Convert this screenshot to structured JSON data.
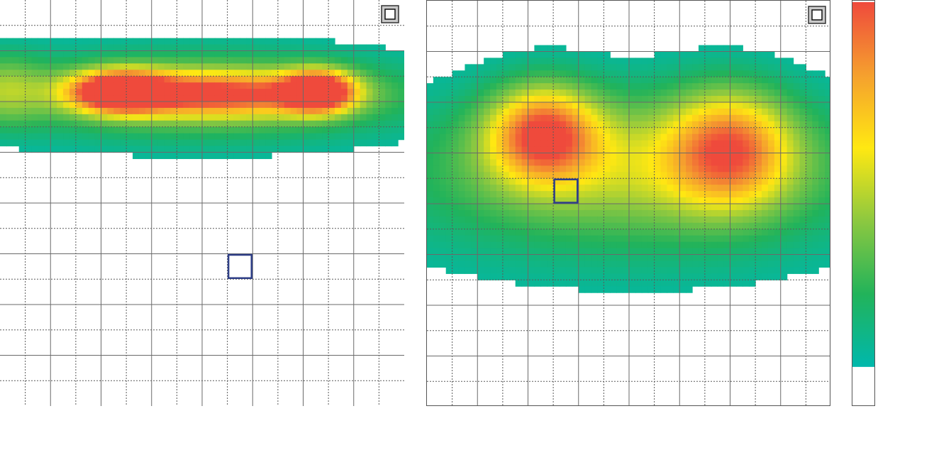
{
  "colors": {
    "background": "#ffffff",
    "grid_major": "#6a6a6a",
    "grid_minor": "#5a5a5a",
    "marker": "#2f3f87",
    "frame": "#555555"
  },
  "chart_data": [
    {
      "type": "heatmap",
      "name": "left-pressure-map",
      "grid": {
        "cols": 16,
        "rows": 16,
        "major_every": 2
      },
      "corner_icon": "square-toggle-icon",
      "marker_cell": {
        "col": 9,
        "row": 10
      },
      "blobs": [
        {
          "cx": 4.7,
          "cy": 3.6,
          "sx": 1.3,
          "sy": 0.55,
          "w": 1.0
        },
        {
          "cx": 12.6,
          "cy": 3.6,
          "sx": 0.95,
          "sy": 0.55,
          "w": 1.0
        },
        {
          "cx": 8.6,
          "cy": 3.7,
          "sx": 3.2,
          "sy": 0.62,
          "w": 0.72
        },
        {
          "cx": 8.0,
          "cy": 3.8,
          "sx": 6.8,
          "sy": 1.35,
          "w": 0.38
        },
        {
          "cx": 0.1,
          "cy": 3.5,
          "sx": 1.2,
          "sy": 1.0,
          "w": 0.28
        }
      ],
      "threshold": 0.08
    },
    {
      "type": "heatmap",
      "name": "right-pressure-map",
      "grid": {
        "cols": 16,
        "rows": 16,
        "major_every": 2
      },
      "corner_icon": "square-toggle-icon",
      "marker_cell": {
        "col": 5,
        "row": 7
      },
      "blobs": [
        {
          "cx": 4.6,
          "cy": 5.2,
          "sx": 1.5,
          "sy": 1.3,
          "w": 0.78
        },
        {
          "cx": 12.0,
          "cy": 5.8,
          "sx": 1.7,
          "sy": 1.6,
          "w": 0.66
        },
        {
          "cx": 8.2,
          "cy": 6.5,
          "sx": 5.6,
          "sy": 1.9,
          "w": 0.33
        },
        {
          "cx": 8.0,
          "cy": 7.2,
          "sx": 8.0,
          "sy": 2.9,
          "w": 0.17
        }
      ],
      "threshold": 0.07
    }
  ],
  "colorbar": {
    "stops": [
      "#ffffff",
      "#00b8ac",
      "#22b35a",
      "#8cc840",
      "#ffe812",
      "#f5a02e",
      "#ef4a3c"
    ],
    "blank_fraction": 0.095
  }
}
